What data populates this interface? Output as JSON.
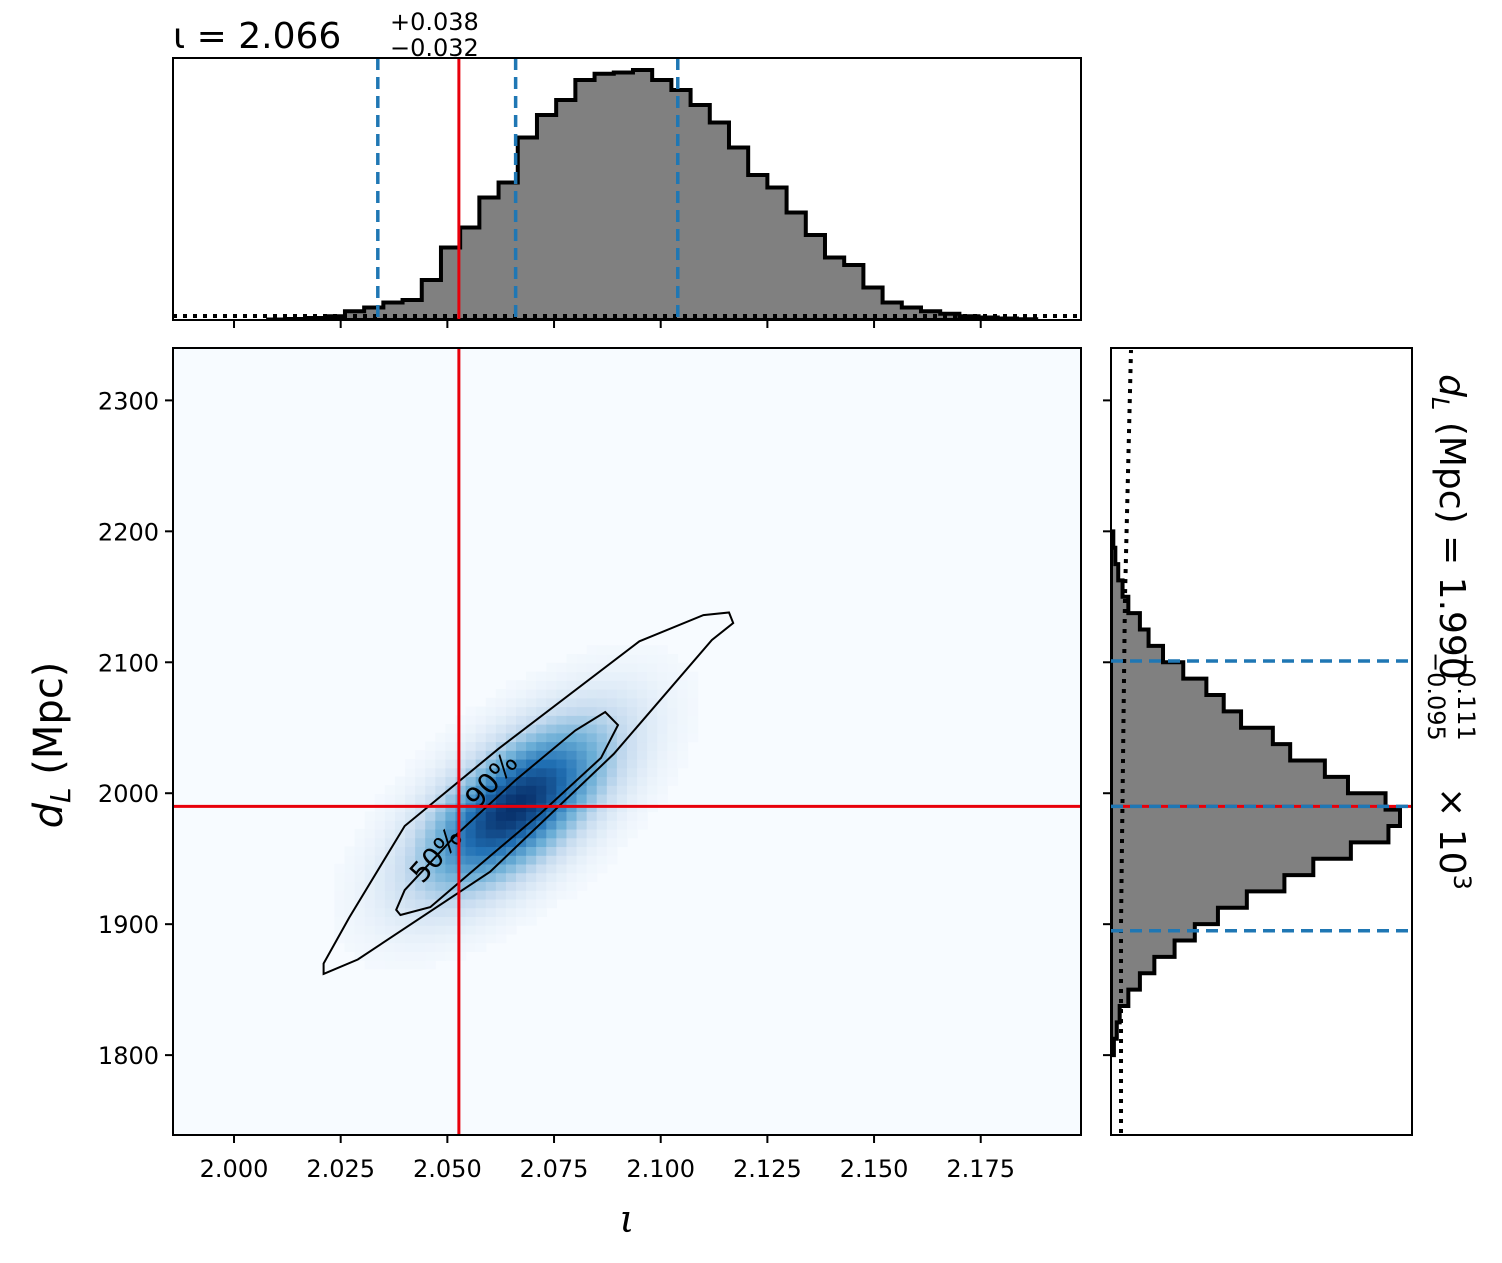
{
  "chart_data": {
    "type": "corner",
    "top_title": {
      "param": "ι",
      "median": "2.066",
      "upper": "+0.038",
      "lower": "−0.032"
    },
    "right_title": {
      "param": "d",
      "sub": "L",
      "unit": " (Mpc) = ",
      "median": "1.990",
      "upper": "+0.111",
      "lower": "−0.095",
      "scale": " × 10",
      "exp": "3"
    },
    "xlabel": {
      "text": "ι"
    },
    "ylabel": {
      "text": "d",
      "sub": "L",
      "unit": " (Mpc)"
    },
    "xlim": [
      1.9857,
      2.1985
    ],
    "ylim": [
      1739,
      2340
    ],
    "xticks": [
      "2.000",
      "2.025",
      "2.050",
      "2.075",
      "2.100",
      "2.125",
      "2.150",
      "2.175"
    ],
    "xtick_values": [
      2.0,
      2.025,
      2.05,
      2.075,
      2.1,
      2.125,
      2.15,
      2.175
    ],
    "yticks": [
      "1800",
      "1900",
      "2000",
      "2100",
      "2200",
      "2300"
    ],
    "ytick_values": [
      1800,
      1900,
      2000,
      2100,
      2200,
      2300
    ],
    "truth": {
      "iota": 2.0527,
      "dL": 1990
    },
    "iota_quantiles": [
      2.0337,
      2.066,
      2.104
    ],
    "dL_quantiles": [
      1895,
      1990,
      2101
    ],
    "contour_labels": [
      "50%",
      "90%"
    ],
    "iota_hist": {
      "start": 2.008,
      "width": 0.0045,
      "counts": [
        0.002,
        0.004,
        0.008,
        0.015,
        0.035,
        0.05,
        0.07,
        0.08,
        0.16,
        0.29,
        0.37,
        0.49,
        0.55,
        0.73,
        0.82,
        0.88,
        0.96,
        0.985,
        0.99,
        1.0,
        0.96,
        0.92,
        0.86,
        0.79,
        0.69,
        0.58,
        0.53,
        0.43,
        0.34,
        0.25,
        0.22,
        0.13,
        0.07,
        0.05,
        0.035,
        0.025,
        0.015,
        0.01,
        0.006,
        0.003
      ]
    },
    "dL_hist": {
      "start": 1800,
      "width": 12.5,
      "counts": [
        0.01,
        0.02,
        0.03,
        0.06,
        0.1,
        0.15,
        0.22,
        0.29,
        0.37,
        0.47,
        0.6,
        0.7,
        0.83,
        0.96,
        1.0,
        0.95,
        0.82,
        0.74,
        0.62,
        0.56,
        0.45,
        0.39,
        0.33,
        0.25,
        0.18,
        0.13,
        0.1,
        0.06,
        0.04,
        0.025,
        0.015,
        0.008
      ]
    },
    "contour_90": [
      [
        2.021,
        1862
      ],
      [
        2.029,
        1873
      ],
      [
        2.06,
        1940
      ],
      [
        2.089,
        2030
      ],
      [
        2.112,
        2117
      ],
      [
        2.117,
        2130
      ],
      [
        2.116,
        2138
      ],
      [
        2.11,
        2136
      ],
      [
        2.095,
        2116
      ],
      [
        2.062,
        2034
      ],
      [
        2.04,
        1975
      ],
      [
        2.027,
        1905
      ],
      [
        2.021,
        1870
      ]
    ],
    "contour_50": [
      [
        2.039,
        1907
      ],
      [
        2.046,
        1913
      ],
      [
        2.06,
        1952
      ],
      [
        2.072,
        1985
      ],
      [
        2.086,
        2027
      ],
      [
        2.09,
        2052
      ],
      [
        2.087,
        2062
      ],
      [
        2.08,
        2048
      ],
      [
        2.066,
        2010
      ],
      [
        2.052,
        1968
      ],
      [
        2.04,
        1926
      ],
      [
        2.038,
        1911
      ]
    ],
    "colors": {
      "quantile": "#1f77b4",
      "truth": "#e8000b",
      "hist_fill": "#808080",
      "density": "#08306b",
      "background": "#f7fbff"
    }
  }
}
